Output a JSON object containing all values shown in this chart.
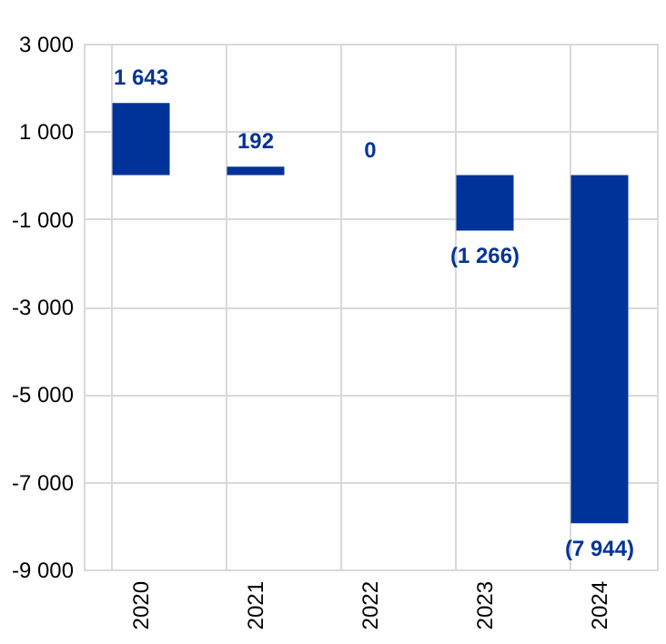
{
  "chart_data": {
    "type": "bar",
    "categories": [
      "2020",
      "2021",
      "2022",
      "2023",
      "2024"
    ],
    "values": [
      1643,
      192,
      0,
      -1266,
      -7944
    ],
    "value_labels": [
      "1 643",
      "192",
      "0",
      "(1 266)",
      "(7 944)"
    ],
    "color": "#003399",
    "ylim": [
      -9000,
      3000
    ],
    "yticks": [
      {
        "value": 3000,
        "label": "3 000"
      },
      {
        "value": 1000,
        "label": "1 000"
      },
      {
        "value": -1000,
        "label": "-1 000"
      },
      {
        "value": -3000,
        "label": "-3 000"
      },
      {
        "value": -5000,
        "label": "-5 000"
      },
      {
        "value": -7000,
        "label": "-7 000"
      },
      {
        "value": -9000,
        "label": "-9 000"
      }
    ],
    "grid": true
  }
}
